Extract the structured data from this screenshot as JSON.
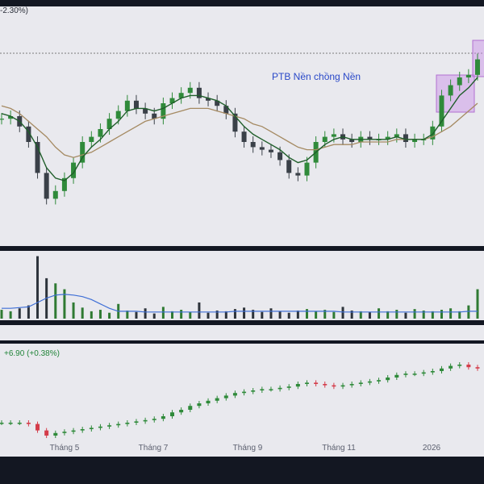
{
  "price_panel": {
    "change_text": "-2.30%)",
    "annotation": "PTB Nền chồng Nền",
    "colors": {
      "up": "#2f8a3a",
      "down": "#3a4048",
      "ma_short": "#1f5e2a",
      "ma_long": "#a58a62",
      "box": "#b16fd0",
      "box_fill": "rgba(200,140,230,0.45)",
      "dotted_line": "#555"
    }
  },
  "index_panel": {
    "change_text": "+6.90 (+0.38%)"
  },
  "x_axis": {
    "tick_labels": [
      "Tháng 5",
      "Tháng 7",
      "Tháng 9",
      "Tháng 11",
      "2026"
    ]
  },
  "chart_data": [
    {
      "type": "candlestick",
      "title": "",
      "annotation": "PTB Nền chồng Nền",
      "x_ticks": [
        "Tháng 5",
        "Tháng 7",
        "Tháng 9",
        "Tháng 11",
        "2026"
      ],
      "series": [
        {
          "name": "",
          "kind": "close",
          "values": [
            69,
            70,
            66,
            60,
            48,
            38,
            41,
            46,
            52,
            60,
            62,
            65,
            69,
            72,
            76,
            73,
            71,
            69,
            75,
            77,
            79,
            81,
            77,
            76,
            74,
            71,
            64,
            60,
            58,
            57,
            56,
            53,
            48,
            47,
            52,
            60,
            62,
            63,
            61,
            60,
            62,
            61,
            61,
            62,
            63,
            60,
            61,
            61,
            66,
            78,
            82,
            85,
            86,
            92
          ]
        },
        {
          "name": "",
          "kind": "ma_short",
          "values": [
            71,
            70,
            68,
            64,
            58,
            50,
            46,
            45,
            48,
            54,
            58,
            61,
            65,
            68,
            72,
            73,
            73,
            72,
            73,
            75,
            77,
            78,
            78,
            77,
            76,
            74,
            70,
            66,
            63,
            61,
            59,
            57,
            54,
            52,
            53,
            56,
            59,
            61,
            62,
            61,
            61,
            61,
            61,
            61,
            62,
            61,
            61,
            61,
            63,
            68,
            73,
            78,
            81,
            85
          ]
        },
        {
          "name": "",
          "kind": "ma_long",
          "values": [
            74,
            73,
            71,
            68,
            65,
            62,
            58,
            55,
            54,
            55,
            56,
            58,
            60,
            62,
            64,
            66,
            68,
            69,
            70,
            71,
            72,
            73,
            73,
            73,
            72,
            71,
            70,
            69,
            67,
            66,
            64,
            62,
            60,
            58,
            57,
            57,
            58,
            59,
            59,
            59,
            60,
            60,
            60,
            60,
            61,
            61,
            61,
            61,
            62,
            64,
            66,
            69,
            72,
            75
          ]
        }
      ]
    },
    {
      "type": "bar",
      "title": "",
      "series": [
        {
          "name": "",
          "kind": "volume",
          "values": [
            12,
            10,
            14,
            18,
            85,
            55,
            48,
            40,
            22,
            15,
            10,
            12,
            8,
            20,
            11,
            9,
            14,
            7,
            16,
            10,
            12,
            9,
            22,
            8,
            11,
            10,
            13,
            15,
            12,
            9,
            14,
            10,
            8,
            11,
            13,
            10,
            12,
            9,
            16,
            11,
            10,
            9,
            14,
            10,
            12,
            8,
            13,
            11,
            10,
            12,
            14,
            10,
            18,
            40
          ]
        },
        {
          "name": "",
          "kind": "volume_ma",
          "values": [
            14,
            14,
            15,
            16,
            22,
            28,
            32,
            33,
            32,
            30,
            26,
            20,
            14,
            10,
            10,
            10,
            9,
            9,
            9,
            9,
            9,
            9,
            9,
            9,
            9,
            9,
            10,
            10,
            10,
            10,
            10,
            10,
            10,
            10,
            10,
            10,
            10,
            10,
            9,
            9,
            9,
            9,
            9,
            9,
            9,
            9,
            9,
            9,
            9,
            9,
            9,
            9,
            10,
            10
          ]
        }
      ]
    },
    {
      "type": "line",
      "title": "",
      "series": [
        {
          "name": "",
          "kind": "index",
          "values": [
            40,
            40,
            40,
            39,
            34,
            30,
            32,
            33,
            34,
            35,
            36,
            37,
            38,
            39,
            40,
            41,
            42,
            43,
            45,
            48,
            50,
            53,
            55,
            57,
            59,
            61,
            63,
            64,
            65,
            66,
            66,
            67,
            68,
            70,
            71,
            70,
            69,
            68,
            69,
            70,
            71,
            72,
            73,
            75,
            77,
            78,
            78,
            79,
            80,
            82,
            84,
            85,
            83,
            82
          ]
        }
      ]
    }
  ]
}
